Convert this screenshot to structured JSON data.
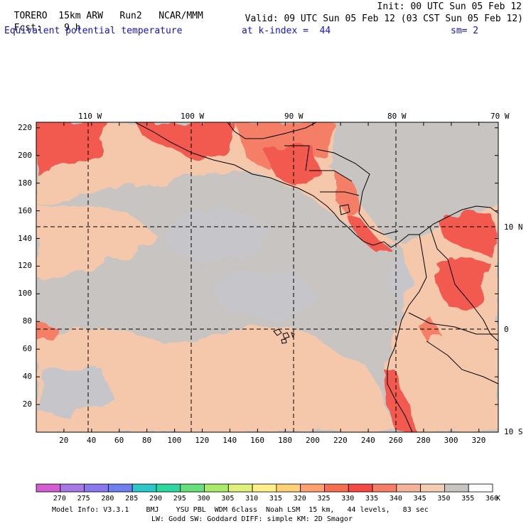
{
  "header": {
    "model": "TORERO",
    "resolution": "15km ARW",
    "run": "Run2",
    "org": "NCAR/MMM",
    "init": "Init: 00 UTC Sun 05 Feb 12",
    "fcst_label": "Fcst:",
    "fcst_value": "9 h",
    "valid": "Valid: 09 UTC Sun 05 Feb 12 (03 CST Sun 05 Feb 12)",
    "field": "Equivalent potential temperature",
    "level": "at k-index =  44",
    "smoothing": "sm= 2"
  },
  "map": {
    "top_lon_labels": [
      "110 W",
      "100 W",
      "90 W",
      "80 W",
      "70 W"
    ],
    "right_lat_labels": [
      "10 N",
      "0",
      "10 S"
    ],
    "y_ticks": [
      "220",
      "200",
      "180",
      "160",
      "140",
      "120",
      "100",
      "80",
      "60",
      "40",
      "20"
    ],
    "x_ticks": [
      "20",
      "40",
      "60",
      "80",
      "100",
      "120",
      "140",
      "160",
      "180",
      "200",
      "220",
      "240",
      "260",
      "280",
      "300",
      "320"
    ],
    "colors": {
      "background_gray": "#c8c4c2",
      "ocean_cool": "#c6c6ca",
      "warm_peach": "#f5c8ac",
      "orange_light": "#f5a88c",
      "orange": "#f57f66",
      "red": "#f25a50",
      "coastline": "#000000",
      "grid": "#000000"
    }
  },
  "colorbar": {
    "labels": [
      "270",
      "275",
      "280",
      "285",
      "290",
      "295",
      "300",
      "305",
      "310",
      "315",
      "320",
      "325",
      "330",
      "335",
      "340",
      "345",
      "350",
      "355",
      "360"
    ],
    "unit": "K",
    "colors": [
      "#d25ed2",
      "#a878e6",
      "#8a78ee",
      "#6e80f0",
      "#2cc8c8",
      "#2cd8a0",
      "#66e07a",
      "#aaea6a",
      "#e0f07a",
      "#fff08a",
      "#ffd278",
      "#ffa070",
      "#f56e50",
      "#f54a44",
      "#f57f66",
      "#f5b49a",
      "#f5ccb4",
      "#c8c4c2",
      "#ffffff"
    ]
  },
  "footer": {
    "line1": "Model Info: V3.3.1    BMJ    YSU PBL  WDM 6class  Noah LSM  15 km,   44 levels,   83 sec",
    "line2": "LW: Godd SW: Goddard DIFF: simple KM: 2D Smagor"
  }
}
